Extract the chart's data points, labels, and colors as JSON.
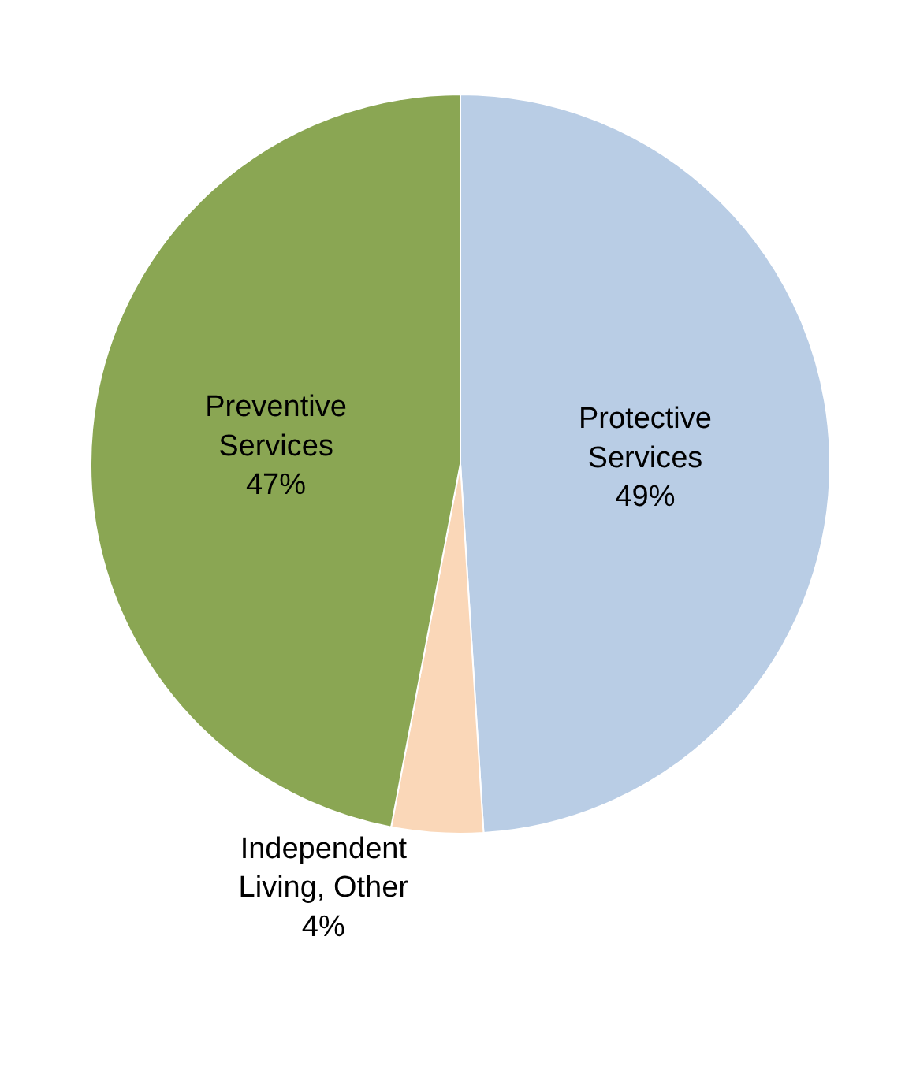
{
  "chart_data": {
    "type": "pie",
    "categories": [
      "Protective Services",
      "Independent Living, Other",
      "Preventive Services"
    ],
    "values": [
      49,
      4,
      47
    ],
    "colors": [
      "#b9cde5",
      "#fad7b8",
      "#8aa653"
    ],
    "value_labels": [
      "49%",
      "4%",
      "47%"
    ],
    "legend": false
  }
}
